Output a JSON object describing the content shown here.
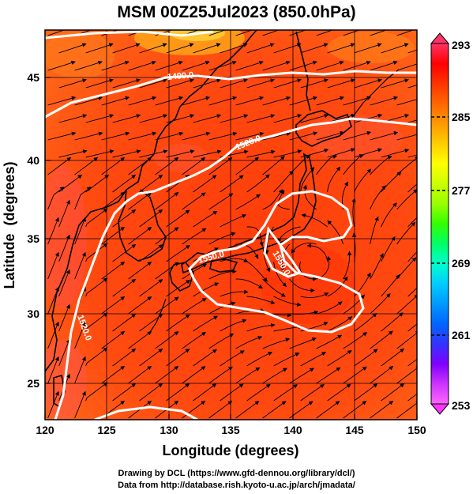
{
  "title": "MSM 00Z25Jul2023 (850.0hPa)",
  "x_axis": {
    "label": "Longitude (degrees)",
    "ticks": [
      "120",
      "125",
      "130",
      "135",
      "140",
      "145",
      "150"
    ],
    "range": [
      120,
      150
    ]
  },
  "y_axis": {
    "label": "Latitude  (degrees)",
    "ticks": [
      "25",
      "30",
      "35",
      "40",
      "45"
    ],
    "range": [
      22.5,
      48
    ]
  },
  "colorbar": {
    "labels": [
      "293",
      "285",
      "277",
      "269",
      "261",
      "253"
    ],
    "range": [
      253,
      293
    ],
    "colors": [
      "#ff66ff",
      "#cc33ff",
      "#8000ff",
      "#3333ff",
      "#0066ff",
      "#0099ff",
      "#00ccff",
      "#00ffcc",
      "#00ff66",
      "#33ff00",
      "#99ff00",
      "#ccff00",
      "#ffff00",
      "#ffcc00",
      "#ff9900",
      "#ff6600",
      "#ff3300",
      "#ff0000",
      "#ff3366"
    ]
  },
  "contours": {
    "labels": [
      "1490.0",
      "1520.0",
      "1550.0",
      "1550.0",
      "1520.0"
    ],
    "levels": [
      1490,
      1520,
      1550
    ]
  },
  "credits": {
    "line1": "Drawing by DCL (https://www.gfd-dennou.org/library/dcl/)",
    "line2": "Data from http://database.rish.kyoto-u.ac.jp/arch/jmadata/"
  }
}
